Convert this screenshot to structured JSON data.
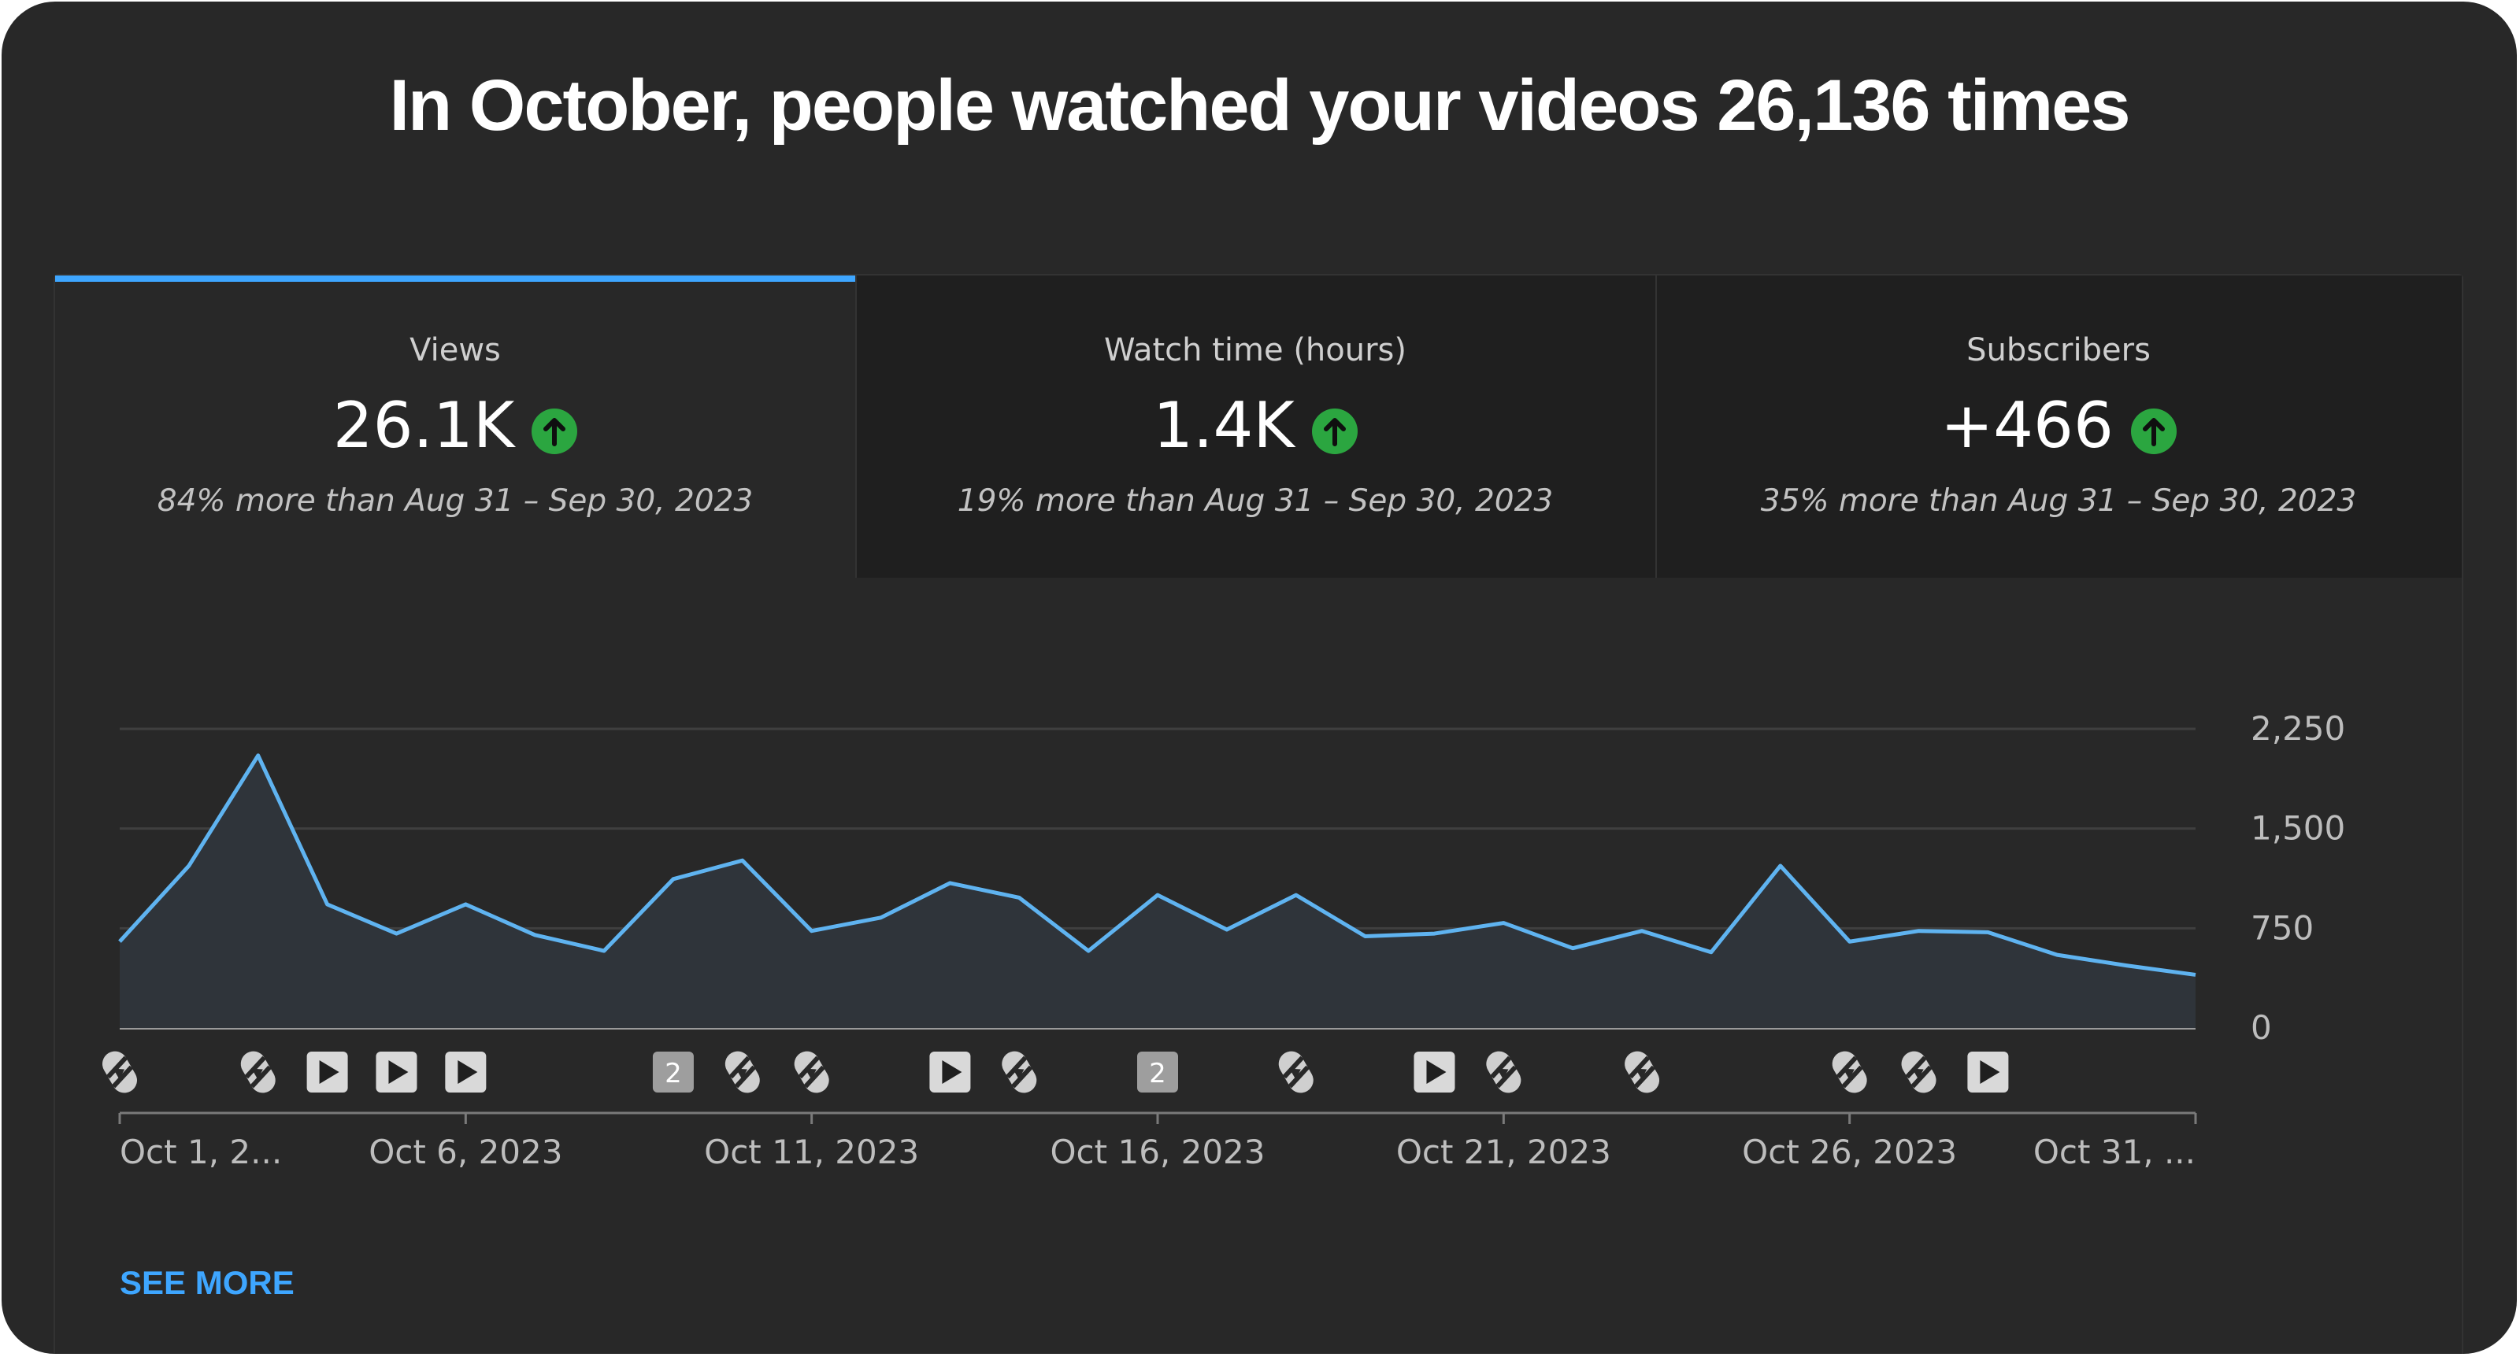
{
  "headline": "In October, people watched your videos 26,136 times",
  "tabs": [
    {
      "label": "Views",
      "value": "26.1K",
      "comparison": "84% more than Aug 31 – Sep 30, 2023",
      "trend_icon": "arrow-up-circle-icon",
      "active": true
    },
    {
      "label": "Watch time (hours)",
      "value": "1.4K",
      "comparison": "19% more than Aug 31 – Sep 30, 2023",
      "trend_icon": "arrow-up-circle-icon",
      "active": false
    },
    {
      "label": "Subscribers",
      "value": "+466",
      "comparison": "35% more than Aug 31 – Sep 30, 2023",
      "trend_icon": "arrow-up-circle-icon",
      "active": false
    }
  ],
  "chart_data": {
    "type": "area",
    "x": [
      "2023-10-01",
      "2023-10-02",
      "2023-10-03",
      "2023-10-04",
      "2023-10-05",
      "2023-10-06",
      "2023-10-07",
      "2023-10-08",
      "2023-10-09",
      "2023-10-10",
      "2023-10-11",
      "2023-10-12",
      "2023-10-13",
      "2023-10-14",
      "2023-10-15",
      "2023-10-16",
      "2023-10-17",
      "2023-10-18",
      "2023-10-19",
      "2023-10-20",
      "2023-10-21",
      "2023-10-22",
      "2023-10-23",
      "2023-10-24",
      "2023-10-25",
      "2023-10-26",
      "2023-10-27",
      "2023-10-28",
      "2023-10-29",
      "2023-10-30",
      "2023-10-31"
    ],
    "series": [
      {
        "values": [
          650,
          1220,
          2050,
          930,
          710,
          930,
          700,
          580,
          1120,
          1260,
          730,
          830,
          1090,
          980,
          580,
          1000,
          740,
          1000,
          690,
          710,
          790,
          600,
          730,
          570,
          1220,
          650,
          730,
          720,
          550,
          470,
          400
        ]
      }
    ],
    "ylim": [
      0,
      2250
    ],
    "yticks": [
      "0",
      "750",
      "1,500",
      "2,250"
    ],
    "xticks": [
      {
        "date": "2023-10-01",
        "label": "Oct 1, 2..."
      },
      {
        "date": "2023-10-06",
        "label": "Oct 6, 2023"
      },
      {
        "date": "2023-10-11",
        "label": "Oct 11, 2023"
      },
      {
        "date": "2023-10-16",
        "label": "Oct 16, 2023"
      },
      {
        "date": "2023-10-21",
        "label": "Oct 21, 2023"
      },
      {
        "date": "2023-10-26",
        "label": "Oct 26, 2023"
      },
      {
        "date": "2023-10-31",
        "label": "Oct 31, ..."
      }
    ],
    "grid": true,
    "line_color": "#5fb3f0",
    "fill_color": "#2f343a",
    "upload_markers": [
      {
        "date": "2023-10-01",
        "kind": "shorts"
      },
      {
        "date": "2023-10-03",
        "kind": "shorts"
      },
      {
        "date": "2023-10-04",
        "kind": "video"
      },
      {
        "date": "2023-10-05",
        "kind": "video"
      },
      {
        "date": "2023-10-06",
        "kind": "video"
      },
      {
        "date": "2023-10-09",
        "kind": "count",
        "label": "2"
      },
      {
        "date": "2023-10-10",
        "kind": "shorts"
      },
      {
        "date": "2023-10-11",
        "kind": "shorts"
      },
      {
        "date": "2023-10-13",
        "kind": "video"
      },
      {
        "date": "2023-10-14",
        "kind": "shorts"
      },
      {
        "date": "2023-10-16",
        "kind": "count",
        "label": "2"
      },
      {
        "date": "2023-10-18",
        "kind": "shorts"
      },
      {
        "date": "2023-10-20",
        "kind": "video"
      },
      {
        "date": "2023-10-21",
        "kind": "shorts"
      },
      {
        "date": "2023-10-23",
        "kind": "shorts"
      },
      {
        "date": "2023-10-26",
        "kind": "shorts"
      },
      {
        "date": "2023-10-27",
        "kind": "shorts"
      },
      {
        "date": "2023-10-28",
        "kind": "video"
      }
    ]
  },
  "see_more": "SEE MORE"
}
